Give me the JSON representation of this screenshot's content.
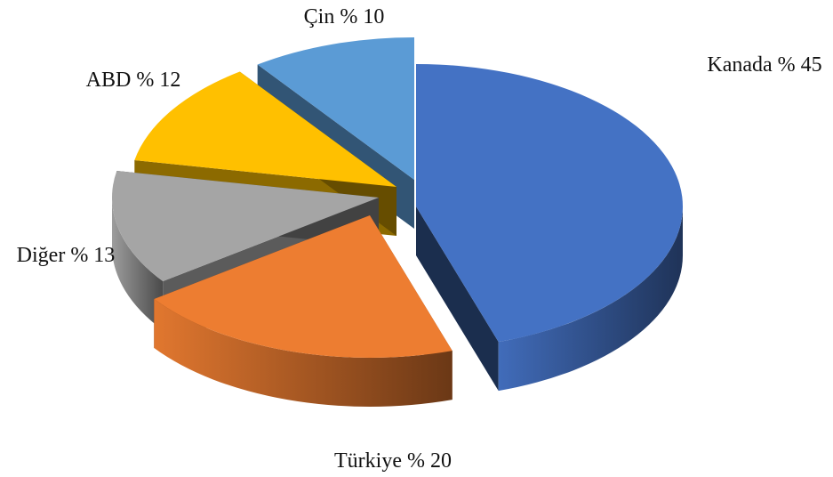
{
  "chart_data": {
    "type": "pie",
    "title": "",
    "style": "3d-exploded",
    "slices": [
      {
        "label": "Kanada",
        "value": 45,
        "display": "Kanada % 45",
        "color": "#4472C4"
      },
      {
        "label": "Türkiye",
        "value": 20,
        "display": "Türkiye % 20",
        "color": "#ED7D31"
      },
      {
        "label": "Diğer",
        "value": 13,
        "display": "Diğer % 13",
        "color": "#A5A5A5"
      },
      {
        "label": "ABD",
        "value": 12,
        "display": "ABD % 12",
        "color": "#FFC000"
      },
      {
        "label": "Çin",
        "value": 10,
        "display": "Çin % 10",
        "color": "#5B9BD5"
      }
    ]
  }
}
